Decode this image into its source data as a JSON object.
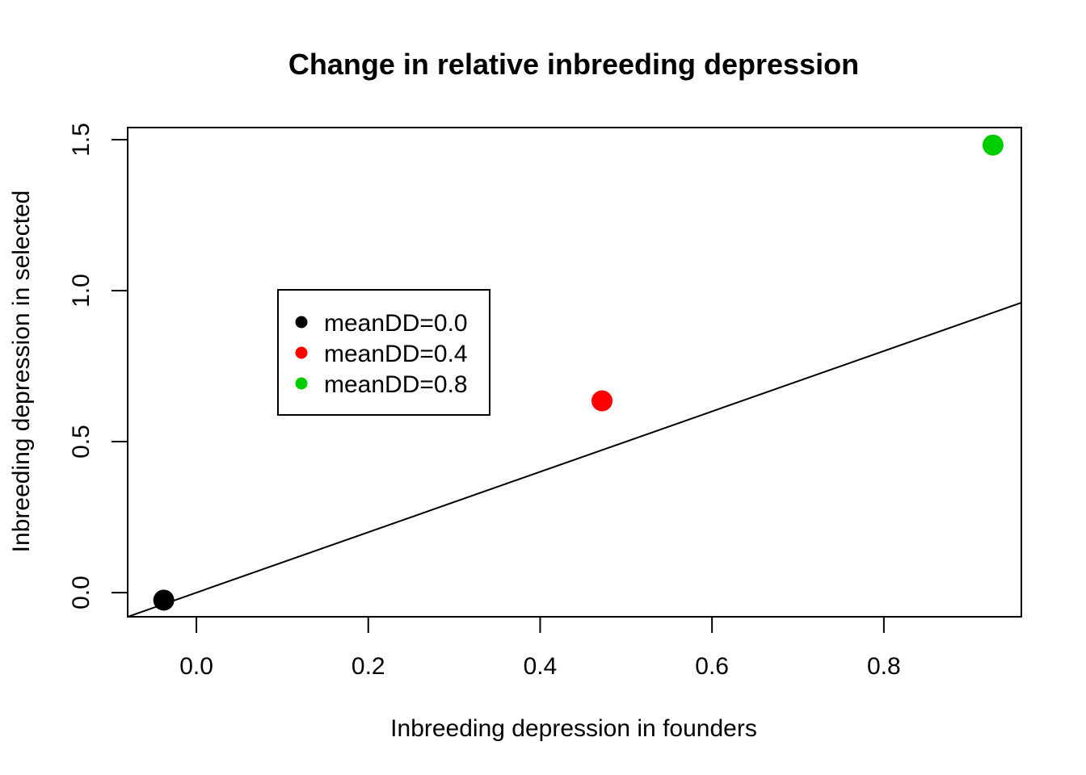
{
  "chart_data": {
    "type": "scatter",
    "title": "Change in relative inbreeding depression",
    "xlabel": "Inbreeding depression in founders",
    "ylabel": "Inbreeding depression in selected",
    "xlim": [
      -0.08,
      0.96
    ],
    "ylim": [
      -0.08,
      1.54
    ],
    "xticks": [
      0.0,
      0.2,
      0.4,
      0.6,
      0.8
    ],
    "xtick_labels": [
      "0.0",
      "0.2",
      "0.4",
      "0.6",
      "0.8"
    ],
    "yticks": [
      0.0,
      0.5,
      1.0,
      1.5
    ],
    "ytick_labels": [
      "0.0",
      "0.5",
      "1.0",
      "1.5"
    ],
    "points": [
      {
        "x": -0.038,
        "y": -0.025,
        "color": "#000000",
        "series": "meanDD=0.0"
      },
      {
        "x": 0.472,
        "y": 0.635,
        "color": "#ff0000",
        "series": "meanDD=0.4"
      },
      {
        "x": 0.927,
        "y": 1.482,
        "color": "#00cd00",
        "series": "meanDD=0.8"
      }
    ],
    "reference_line": {
      "intercept": 0,
      "slope": 1
    },
    "legend": {
      "position": "center-left",
      "entries": [
        {
          "label": "meanDD=0.0",
          "color": "#000000"
        },
        {
          "label": "meanDD=0.4",
          "color": "#ff0000"
        },
        {
          "label": "meanDD=0.8",
          "color": "#00cd00"
        }
      ]
    },
    "grid": false
  }
}
